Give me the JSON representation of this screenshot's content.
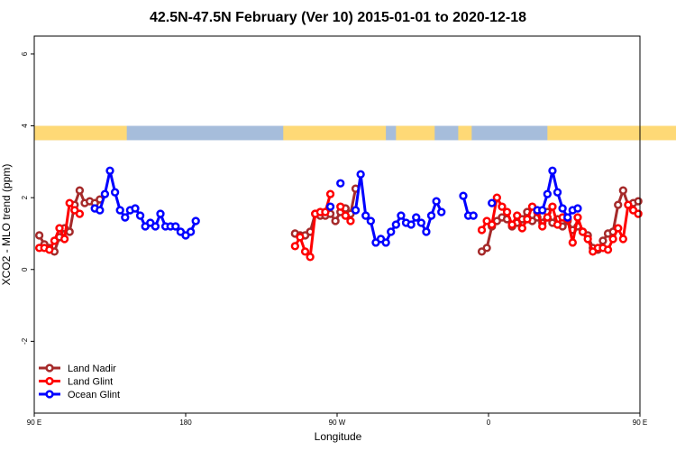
{
  "chart_data": {
    "type": "line",
    "title": "42.5N-47.5N February (Ver 10)   2015-01-01 to 2020-12-18",
    "xlabel": "Longitude",
    "ylabel": "XCO2 - MLO trend (ppm)",
    "xlim": [
      90,
      450
    ],
    "ylim": [
      -4,
      6.5
    ],
    "x_ticks": [
      {
        "value": 90,
        "label": "90 E"
      },
      {
        "value": 180,
        "label": "180"
      },
      {
        "value": 270,
        "label": "90 W"
      },
      {
        "value": 360,
        "label": "0"
      },
      {
        "value": 450,
        "label": "90 E"
      },
      {
        "value": 540,
        "label": "180"
      }
    ],
    "y_ticks": [
      {
        "value": -2,
        "label": "-2"
      },
      {
        "value": 0,
        "label": "0"
      },
      {
        "value": 2,
        "label": "2"
      },
      {
        "value": 4,
        "label": "4"
      },
      {
        "value": 6,
        "label": "6"
      }
    ],
    "xlim_data": [
      90,
      540
    ],
    "ylim_data": [
      -4,
      6.5
    ],
    "legend_position": "bottom-left",
    "surface_strip": {
      "y_range": [
        3.6,
        4.0
      ],
      "land_color": "#fed976",
      "ocean_color": "#a6bddb",
      "land_ranges": [
        [
          90,
          145
        ],
        [
          238,
          299
        ],
        [
          305,
          328
        ],
        [
          342,
          350
        ],
        [
          395,
          495
        ],
        [
          521,
          525
        ]
      ]
    },
    "series": [
      {
        "name": "Land Nadir",
        "color": "#a52a2a",
        "segments": [
          [
            [
              93,
              0.95
            ],
            [
              96,
              0.7
            ],
            [
              99,
              0.6
            ],
            [
              102,
              0.5
            ],
            [
              105,
              0.9
            ],
            [
              108,
              1.15
            ],
            [
              111,
              1.05
            ],
            [
              114,
              1.8
            ],
            [
              117,
              2.2
            ],
            [
              120,
              1.85
            ],
            [
              123,
              1.9
            ],
            [
              126,
              1.85
            ],
            [
              129,
              1.95
            ]
          ],
          [
            [
              245,
              1.0
            ],
            [
              248,
              0.95
            ],
            [
              251,
              0.95
            ],
            [
              254,
              1.05
            ],
            [
              257,
              1.55
            ],
            [
              260,
              1.5
            ],
            [
              263,
              1.5
            ],
            [
              266,
              1.55
            ],
            [
              269,
              1.35
            ],
            [
              272,
              1.6
            ],
            [
              275,
              1.7
            ],
            [
              278,
              1.55
            ],
            [
              281,
              2.25
            ]
          ],
          [
            [
              356,
              0.5
            ],
            [
              359,
              0.6
            ],
            [
              362,
              1.2
            ],
            [
              365,
              1.35
            ],
            [
              368,
              1.45
            ],
            [
              371,
              1.4
            ],
            [
              374,
              1.2
            ],
            [
              377,
              1.3
            ],
            [
              380,
              1.4
            ],
            [
              383,
              1.6
            ],
            [
              386,
              1.35
            ],
            [
              389,
              1.45
            ],
            [
              392,
              1.3
            ],
            [
              395,
              1.6
            ],
            [
              398,
              1.3
            ],
            [
              401,
              1.4
            ],
            [
              404,
              1.2
            ],
            [
              407,
              1.35
            ],
            [
              410,
              1.1
            ],
            [
              413,
              1.2
            ],
            [
              416,
              1.05
            ],
            [
              419,
              0.95
            ],
            [
              422,
              0.6
            ],
            [
              425,
              0.55
            ],
            [
              428,
              0.8
            ],
            [
              431,
              1.0
            ],
            [
              434,
              1.05
            ],
            [
              437,
              1.8
            ],
            [
              440,
              2.2
            ],
            [
              443,
              1.8
            ],
            [
              446,
              1.85
            ],
            [
              449,
              1.9
            ]
          ]
        ]
      },
      {
        "name": "Land Glint",
        "color": "#ff0000",
        "segments": [
          [
            [
              93,
              0.6
            ],
            [
              96,
              0.6
            ],
            [
              99,
              0.55
            ],
            [
              102,
              0.8
            ],
            [
              105,
              1.15
            ],
            [
              108,
              0.85
            ],
            [
              111,
              1.85
            ],
            [
              114,
              1.65
            ],
            [
              117,
              1.55
            ]
          ],
          [
            [
              245,
              0.65
            ],
            [
              248,
              0.9
            ],
            [
              251,
              0.5
            ],
            [
              254,
              0.35
            ],
            [
              257,
              1.55
            ],
            [
              260,
              1.6
            ],
            [
              263,
              1.6
            ],
            [
              266,
              2.1
            ]
          ],
          [
            [
              272,
              1.75
            ],
            [
              275,
              1.5
            ],
            [
              278,
              1.35
            ]
          ],
          [
            [
              356,
              1.1
            ],
            [
              359,
              1.35
            ],
            [
              362,
              1.25
            ],
            [
              365,
              2.0
            ],
            [
              368,
              1.75
            ],
            [
              371,
              1.6
            ],
            [
              374,
              1.25
            ],
            [
              377,
              1.5
            ],
            [
              380,
              1.15
            ],
            [
              383,
              1.4
            ],
            [
              386,
              1.75
            ],
            [
              389,
              1.6
            ],
            [
              392,
              1.2
            ],
            [
              395,
              1.45
            ],
            [
              398,
              1.75
            ],
            [
              401,
              1.25
            ],
            [
              404,
              1.45
            ],
            [
              407,
              1.4
            ],
            [
              410,
              0.75
            ],
            [
              413,
              1.45
            ],
            [
              416,
              1.05
            ],
            [
              419,
              0.85
            ],
            [
              422,
              0.5
            ],
            [
              425,
              0.6
            ],
            [
              428,
              0.6
            ],
            [
              431,
              0.55
            ],
            [
              434,
              0.85
            ],
            [
              437,
              1.15
            ],
            [
              440,
              0.85
            ],
            [
              443,
              1.8
            ],
            [
              446,
              1.65
            ],
            [
              449,
              1.55
            ]
          ]
        ]
      },
      {
        "name": "Ocean Glint",
        "color": "#0000ff",
        "segments": [
          [
            [
              126,
              1.7
            ],
            [
              129,
              1.65
            ],
            [
              132,
              2.1
            ],
            [
              135,
              2.75
            ],
            [
              138,
              2.15
            ],
            [
              141,
              1.65
            ],
            [
              144,
              1.45
            ],
            [
              147,
              1.65
            ],
            [
              150,
              1.7
            ],
            [
              153,
              1.5
            ],
            [
              156,
              1.2
            ],
            [
              159,
              1.3
            ],
            [
              162,
              1.2
            ],
            [
              165,
              1.55
            ],
            [
              168,
              1.2
            ],
            [
              171,
              1.2
            ],
            [
              174,
              1.2
            ],
            [
              177,
              1.05
            ],
            [
              180,
              0.95
            ],
            [
              183,
              1.05
            ],
            [
              186,
              1.35
            ]
          ],
          [
            [
              266,
              1.75
            ]
          ],
          [
            [
              272,
              2.4
            ]
          ],
          [
            [
              281,
              1.65
            ],
            [
              284,
              2.65
            ],
            [
              287,
              1.5
            ],
            [
              290,
              1.35
            ],
            [
              293,
              0.75
            ],
            [
              296,
              0.85
            ],
            [
              299,
              0.75
            ],
            [
              302,
              1.05
            ],
            [
              305,
              1.25
            ],
            [
              308,
              1.5
            ],
            [
              311,
              1.3
            ],
            [
              314,
              1.25
            ],
            [
              317,
              1.45
            ],
            [
              320,
              1.3
            ],
            [
              323,
              1.05
            ],
            [
              326,
              1.5
            ],
            [
              329,
              1.9
            ],
            [
              332,
              1.6
            ]
          ],
          [
            [
              345,
              2.05
            ],
            [
              348,
              1.5
            ],
            [
              351,
              1.5
            ]
          ],
          [
            [
              362,
              1.85
            ]
          ],
          [
            [
              389,
              1.65
            ],
            [
              392,
              1.65
            ],
            [
              395,
              2.1
            ],
            [
              398,
              2.75
            ],
            [
              401,
              2.15
            ],
            [
              404,
              1.7
            ],
            [
              407,
              1.45
            ],
            [
              410,
              1.65
            ],
            [
              413,
              1.7
            ]
          ]
        ]
      }
    ]
  }
}
